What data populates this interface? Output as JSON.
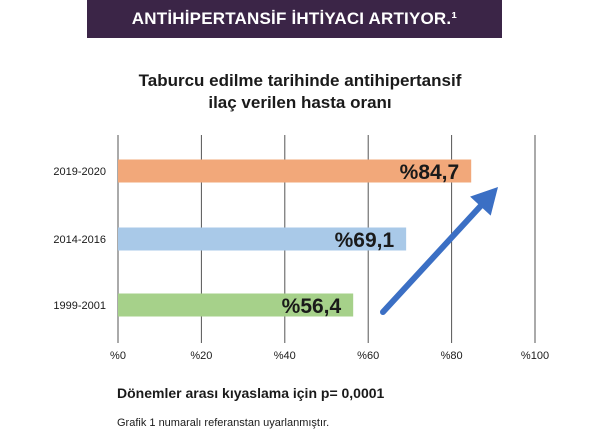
{
  "banner": {
    "text": "ANTİHİPERTANSİF İHTİYACI ARTIYOR.¹"
  },
  "chart_title": {
    "line1": "Taburcu edilme tarihinde antihipertansif",
    "line2": "ilaç verilen hasta oranı"
  },
  "chart_data": {
    "type": "bar",
    "orientation": "horizontal",
    "title": "Taburcu edilme tarihinde antihipertansif ilaç verilen hasta oranı",
    "categories": [
      "2019-2020",
      "2014-2016",
      "1999-2001"
    ],
    "values": [
      84.7,
      69.1,
      56.4
    ],
    "value_labels": [
      "%84,7",
      "%69,1",
      "%56,4"
    ],
    "bar_colors": [
      "#f2a87a",
      "#a9c9e8",
      "#a6d18a"
    ],
    "xlim": [
      0,
      100
    ],
    "x_ticks": [
      0,
      20,
      40,
      60,
      80,
      100
    ],
    "x_tick_labels": [
      "%0",
      "%20",
      "%40",
      "%60",
      "%80",
      "%100"
    ],
    "grid": true,
    "annotation": "upward-trend-arrow",
    "arrow_color": "#3b6fc4"
  },
  "footnotes": {
    "p_value": "Dönemler arası kıyaslama için p= 0,0001",
    "source": "Grafik 1 numaralı referanstan uyarlanmıştır."
  }
}
